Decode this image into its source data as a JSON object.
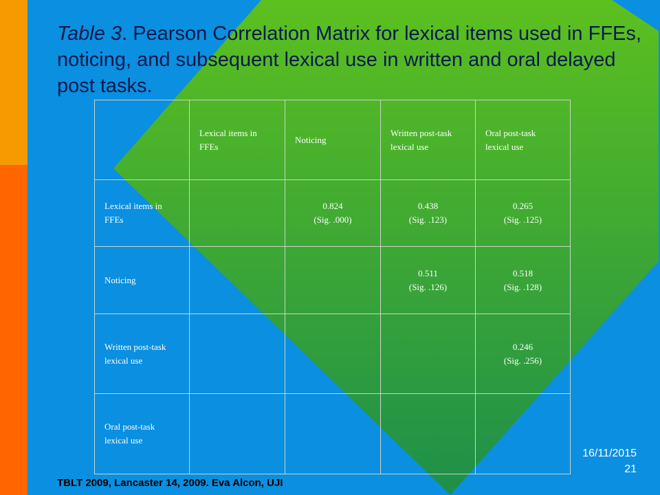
{
  "title": {
    "lead": "Table 3",
    "rest": ". Pearson Correlation Matrix for lexical items used in FFEs, noticing, and subsequent lexical use in written and oral delayed post tasks."
  },
  "table": {
    "columns": [
      "Lexical items in FFEs",
      "Noticing",
      "Written post-task lexical use",
      "Oral post-task lexical use"
    ],
    "rows": [
      {
        "label": "Lexical items in FFEs",
        "cells": [
          {
            "r": "",
            "sig": ""
          },
          {
            "r": "0.824",
            "sig": "(Sig. .000)"
          },
          {
            "r": "0.438",
            "sig": "(Sig. .123)"
          },
          {
            "r": "0.265",
            "sig": "(Sig. .125)"
          }
        ]
      },
      {
        "label": "Noticing",
        "cells": [
          {
            "r": "",
            "sig": ""
          },
          {
            "r": "",
            "sig": ""
          },
          {
            "r": "0.511",
            "sig": "(Sig. .126)"
          },
          {
            "r": "0.518",
            "sig": "(Sig. .128)"
          }
        ]
      },
      {
        "label": "Written post-task lexical use",
        "cells": [
          {
            "r": "",
            "sig": ""
          },
          {
            "r": "",
            "sig": ""
          },
          {
            "r": "",
            "sig": ""
          },
          {
            "r": "0.246",
            "sig": "(Sig. .256)"
          }
        ]
      },
      {
        "label": "Oral post-task lexical use",
        "cells": [
          {
            "r": "",
            "sig": ""
          },
          {
            "r": "",
            "sig": ""
          },
          {
            "r": "",
            "sig": ""
          },
          {
            "r": "",
            "sig": ""
          }
        ]
      }
    ]
  },
  "footer": "TBLT 2009, Lancaster 14, 2009. Eva Alcon, UJI",
  "date": "16/11/2015",
  "slide_number": "21",
  "colors": {
    "background": "#0b8fe0",
    "diamond_top": "#5cc01f",
    "diamond_bottom": "#1e8f4a",
    "bar_top": "#f59a00",
    "bar_bottom": "#ff6600"
  }
}
